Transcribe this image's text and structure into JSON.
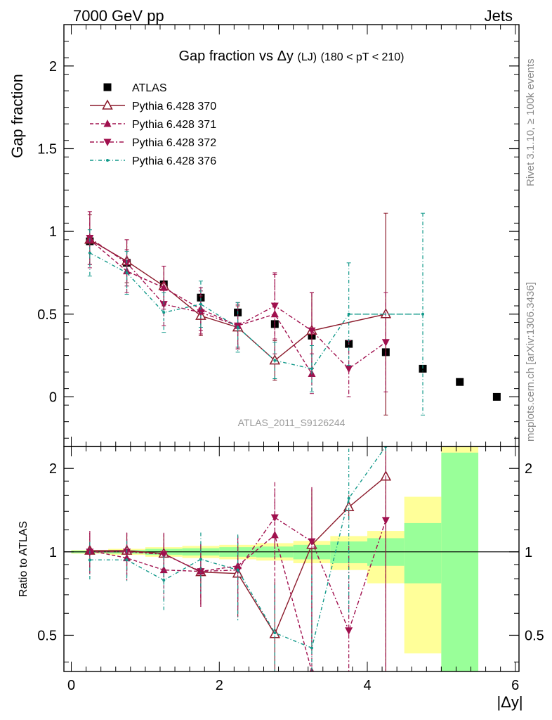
{
  "header": {
    "left": "7000 GeV pp",
    "right": "Jets"
  },
  "side_labels": {
    "rivet": "Rivet 3.1.10, ≥ 100k events",
    "mcplots": "mcplots.cern.ch [arXiv:1306.3436]"
  },
  "analysis_tag": "ATLAS_2011_S9126244",
  "chart_data": [
    {
      "type": "scatter",
      "panel": "main",
      "title_main": "Gap fraction vs",
      "title_sym": "Δy",
      "title_sub": "(LJ)",
      "title_range": "(180 < pT < 210)",
      "ylabel": "Gap fraction",
      "xlim": [
        -0.1,
        6.05
      ],
      "ylim": [
        -0.3,
        2.25
      ],
      "yticks": [
        0,
        0.5,
        1,
        1.5,
        2
      ],
      "ytick_labels": [
        "0",
        "0.5",
        "1",
        "1.5",
        "2"
      ],
      "legend_position": "top-left",
      "colors": {
        "atlas": "#000000",
        "p370": "#8b1a2b",
        "p371": "#a0104e",
        "p372": "#a0104e",
        "p376": "#12998a"
      },
      "series": [
        {
          "name": "ATLAS",
          "marker": "square",
          "x": [
            0.25,
            0.75,
            1.25,
            1.75,
            2.25,
            2.75,
            3.25,
            3.75,
            4.25,
            4.75,
            5.25,
            5.75
          ],
          "y": [
            0.94,
            0.81,
            0.68,
            0.6,
            0.51,
            0.44,
            0.37,
            0.32,
            0.27,
            0.17,
            0.09,
            0.0
          ]
        },
        {
          "name": "Pythia 6.428 370",
          "marker": "triangle-open",
          "line": "solid",
          "x": [
            0.25,
            0.75,
            1.25,
            1.75,
            2.25,
            2.75,
            3.25,
            4.25
          ],
          "y": [
            0.95,
            0.82,
            0.67,
            0.49,
            0.42,
            0.22,
            0.4,
            0.5
          ],
          "yerr": [
            0.15,
            0.13,
            0.12,
            0.12,
            0.13,
            0.12,
            0.23,
            0.61
          ]
        },
        {
          "name": "Pythia 6.428 371",
          "marker": "triangle-up",
          "line": "dashed",
          "x": [
            0.25,
            0.75,
            1.25,
            1.75,
            2.25,
            2.75,
            3.25
          ],
          "y": [
            0.95,
            0.76,
            0.66,
            0.53,
            0.43,
            0.5,
            0.14
          ],
          "yerr": [
            0.17,
            0.13,
            0.13,
            0.13,
            0.13,
            0.24,
            0.12
          ]
        },
        {
          "name": "Pythia 6.428 372",
          "marker": "triangle-down",
          "line": "dashdot",
          "x": [
            0.25,
            0.75,
            1.25,
            1.75,
            2.25,
            2.75,
            3.25,
            3.75,
            4.25
          ],
          "y": [
            0.96,
            0.81,
            0.56,
            0.51,
            0.43,
            0.55,
            0.4,
            0.17,
            0.33
          ],
          "yerr": [
            0.16,
            0.14,
            0.13,
            0.13,
            0.14,
            0.2,
            0.23,
            0.17,
            0.3
          ]
        },
        {
          "name": "Pythia 6.428 376",
          "marker": "dot",
          "line": "dashdot-fine",
          "x": [
            0.25,
            0.75,
            1.25,
            1.75,
            2.25,
            2.75,
            3.25,
            3.75,
            4.75
          ],
          "y": [
            0.87,
            0.75,
            0.51,
            0.56,
            0.42,
            0.22,
            0.17,
            0.5,
            0.5
          ],
          "yerr": [
            0.14,
            0.13,
            0.12,
            0.14,
            0.15,
            0.11,
            0.14,
            0.31,
            0.61
          ]
        }
      ]
    },
    {
      "type": "scatter",
      "panel": "ratio",
      "ylabel": "Ratio to ATLAS",
      "xlabel": "|Δy|",
      "xlim": [
        -0.1,
        6.05
      ],
      "ylog": true,
      "ylim": [
        0.37,
        2.4
      ],
      "yticks": [
        0.5,
        1,
        2
      ],
      "ytick_labels": [
        "0.5",
        "1",
        "2"
      ],
      "xticks": [
        0,
        2,
        4,
        6
      ],
      "xtick_labels": [
        "0",
        "2",
        "4",
        "6"
      ],
      "bands": {
        "x_edges": [
          0,
          0.5,
          1,
          1.5,
          2,
          2.5,
          3,
          3.5,
          4,
          4.5,
          5,
          5.5
        ],
        "yellow_lo": [
          0.985,
          0.975,
          0.96,
          0.95,
          0.94,
          0.93,
          0.91,
          0.86,
          0.77,
          0.43,
          0.35
        ],
        "yellow_hi": [
          1.015,
          1.025,
          1.04,
          1.05,
          1.06,
          1.075,
          1.095,
          1.14,
          1.19,
          1.58,
          2.4
        ],
        "green_lo": [
          0.99,
          0.985,
          0.975,
          0.97,
          0.96,
          0.955,
          0.94,
          0.91,
          0.89,
          0.77,
          0.35
        ],
        "green_hi": [
          1.01,
          1.015,
          1.025,
          1.03,
          1.04,
          1.045,
          1.06,
          1.09,
          1.12,
          1.27,
          2.28
        ]
      },
      "series": [
        {
          "name": "Pythia 6.428 370",
          "x": [
            0.25,
            0.75,
            1.25,
            1.75,
            2.25,
            2.75,
            3.25,
            3.75,
            4.25
          ],
          "y": [
            1.01,
            1.01,
            0.985,
            0.845,
            0.835,
            0.505,
            1.06,
            1.45,
            1.87
          ]
        },
        {
          "name": "Pythia 6.428 371",
          "x": [
            0.25,
            0.75,
            1.25,
            1.75,
            2.25,
            2.75,
            3.25
          ],
          "y": [
            1.01,
            0.95,
            0.86,
            0.85,
            0.89,
            1.15,
            0.37
          ]
        },
        {
          "name": "Pythia 6.428 372",
          "x": [
            0.25,
            0.75,
            1.25,
            1.75,
            2.25,
            2.75,
            3.25,
            3.75,
            4.25
          ],
          "y": [
            1.0,
            1.0,
            0.98,
            0.85,
            0.86,
            1.33,
            1.09,
            0.52,
            1.3
          ]
        },
        {
          "name": "Pythia 6.428 376",
          "x": [
            0.25,
            0.75,
            1.25,
            1.75,
            2.25,
            2.75,
            3.25,
            3.75,
            4.25
          ],
          "y": [
            0.935,
            0.935,
            0.79,
            0.94,
            0.86,
            0.51,
            0.45,
            1.56,
            2.4
          ]
        }
      ]
    }
  ]
}
